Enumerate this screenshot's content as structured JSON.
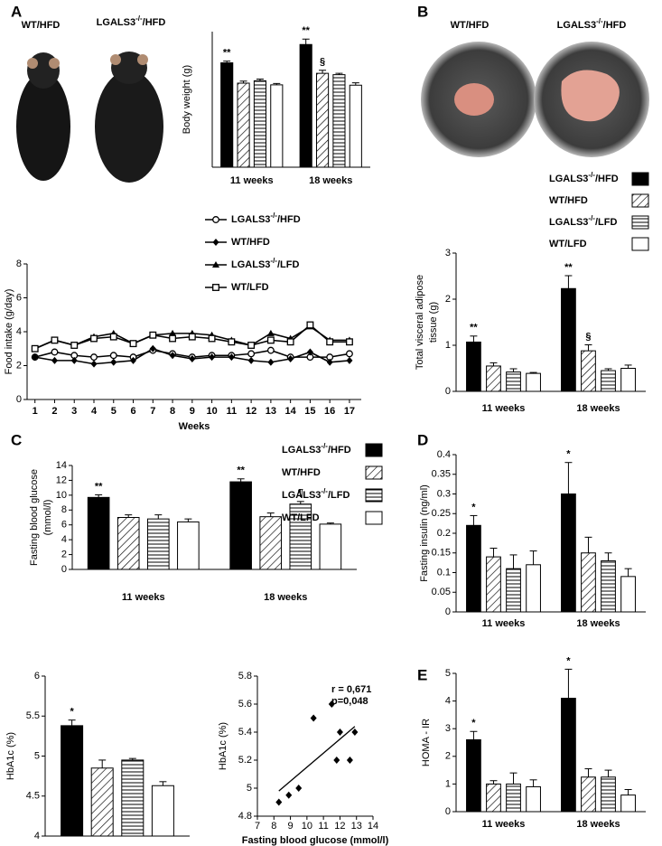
{
  "panel_letters": [
    "A",
    "B",
    "C",
    "D",
    "E"
  ],
  "photo_labels": [
    [
      "WT/HFD",
      "LGALS3-/-/HFD"
    ],
    [
      "WT/HFD",
      "LGALS3-/-/HFD"
    ]
  ],
  "chart_data": [
    {
      "type": "bar",
      "ylabel": [
        "Body weight (g)"
      ],
      "categories": [
        "11 weeks",
        "18 weeks"
      ],
      "ylim": [
        0,
        40
      ],
      "series": [
        {
          "color": "#000000",
          "pattern": "solid",
          "values": [
            30.8,
            36.2
          ],
          "errors": [
            0.5,
            1.6
          ],
          "significance": [
            "**",
            "**"
          ]
        },
        {
          "color": "#ffffff",
          "pattern": "diagonal",
          "values": [
            24.8,
            27.7
          ],
          "errors": [
            0.6,
            0.9
          ],
          "significance": [
            null,
            "§"
          ]
        },
        {
          "color": "#ffffff",
          "pattern": "horizontal",
          "values": [
            25.5,
            27.3
          ],
          "errors": [
            0.5,
            0.4
          ]
        },
        {
          "color": "#ffffff",
          "pattern": "solid",
          "values": [
            24.3,
            24.2
          ],
          "errors": [
            0.4,
            0.7
          ]
        }
      ]
    },
    {
      "type": "line",
      "ylabel": [
        "Food intake (g/day)"
      ],
      "xlabel": "Weeks",
      "x": [
        1,
        2,
        3,
        4,
        5,
        6,
        7,
        8,
        9,
        10,
        11,
        12,
        13,
        14,
        15,
        16,
        17
      ],
      "xlim": [
        0.6,
        17.6
      ],
      "xticks": [
        1,
        2,
        3,
        4,
        5,
        6,
        7,
        8,
        9,
        10,
        11,
        12,
        13,
        14,
        15,
        16,
        17
      ],
      "ylim": [
        0,
        8
      ],
      "yticks": [
        0,
        2,
        4,
        6,
        8
      ],
      "series": [
        {
          "name": "LGALS3-/-/HFD",
          "color": "#000000",
          "marker": "circle-open",
          "values": [
            2.5,
            2.8,
            2.6,
            2.5,
            2.6,
            2.5,
            2.9,
            2.7,
            2.5,
            2.6,
            2.6,
            2.7,
            2.9,
            2.5,
            2.5,
            2.5,
            2.7
          ]
        },
        {
          "name": "WT/HFD",
          "color": "#000000",
          "marker": "diamond",
          "values": [
            2.5,
            2.3,
            2.3,
            2.1,
            2.2,
            2.3,
            3.0,
            2.6,
            2.4,
            2.5,
            2.5,
            2.3,
            2.2,
            2.4,
            2.8,
            2.2,
            2.3
          ]
        },
        {
          "name": "LGALS3-/-/LFD",
          "color": "#000000",
          "marker": "triangle",
          "values": [
            3.0,
            3.5,
            3.2,
            3.7,
            3.9,
            3.3,
            3.8,
            3.9,
            3.9,
            3.8,
            3.5,
            3.2,
            3.9,
            3.6,
            4.3,
            3.5,
            3.5
          ]
        },
        {
          "name": "WT/LFD",
          "color": "#000000",
          "marker": "square-open",
          "values": [
            3.0,
            3.5,
            3.2,
            3.6,
            3.7,
            3.3,
            3.8,
            3.6,
            3.7,
            3.6,
            3.4,
            3.2,
            3.5,
            3.4,
            4.4,
            3.4,
            3.4
          ]
        }
      ]
    },
    {
      "type": "bar",
      "ylabel": [
        "Total visceral adipose",
        "tissue (g)"
      ],
      "categories": [
        "11 weeks",
        "18 weeks"
      ],
      "ylim": [
        0,
        3
      ],
      "yticks": [
        0,
        1,
        2,
        3
      ],
      "series": [
        {
          "name": "LGALS3-/-/HFD",
          "color": "#000000",
          "pattern": "solid",
          "values": [
            1.07,
            2.23
          ],
          "errors": [
            0.13,
            0.28
          ],
          "significance": [
            "**",
            "**"
          ]
        },
        {
          "name": "WT/HFD",
          "color": "#ffffff",
          "pattern": "diagonal",
          "values": [
            0.55,
            0.88
          ],
          "errors": [
            0.07,
            0.13
          ],
          "significance": [
            null,
            "§"
          ]
        },
        {
          "name": "LGALS3-/-/LFD",
          "color": "#ffffff",
          "pattern": "horizontal",
          "values": [
            0.42,
            0.45
          ],
          "errors": [
            0.07,
            0.04
          ]
        },
        {
          "name": "WT/LFD",
          "color": "#ffffff",
          "pattern": "solid",
          "values": [
            0.39,
            0.5
          ],
          "errors": [
            0.02,
            0.07
          ]
        }
      ]
    },
    {
      "type": "bar",
      "ylabel": [
        "Fasting blood glucose",
        "(mmol/l)"
      ],
      "categories": [
        "11 weeks",
        "18 weeks"
      ],
      "ylim": [
        0,
        14
      ],
      "yticks": [
        0,
        2,
        4,
        6,
        8,
        10,
        12,
        14
      ],
      "series": [
        {
          "name": "LGALS3-/-/HFD",
          "color": "#000000",
          "pattern": "solid",
          "values": [
            9.7,
            11.8
          ],
          "errors": [
            0.35,
            0.4
          ],
          "significance": [
            "**",
            "**"
          ]
        },
        {
          "name": "WT/HFD",
          "color": "#ffffff",
          "pattern": "diagonal",
          "values": [
            7.0,
            7.1
          ],
          "errors": [
            0.35,
            0.5
          ]
        },
        {
          "name": "LGALS3-/-/LFD",
          "color": "#ffffff",
          "pattern": "horizontal",
          "values": [
            6.8,
            8.8
          ],
          "errors": [
            0.55,
            0.35
          ],
          "significance": [
            null,
            "¶"
          ]
        },
        {
          "name": "WT/LFD",
          "color": "#ffffff",
          "pattern": "solid",
          "values": [
            6.4,
            6.1
          ],
          "errors": [
            0.4,
            0.15
          ]
        }
      ]
    },
    {
      "type": "bar",
      "ylabel": [
        "Fasting insulin (ng/ml)"
      ],
      "categories": [
        "11 weeks",
        "18 weeks"
      ],
      "ylim": [
        0,
        0.4
      ],
      "yticks": [
        0,
        0.05,
        0.1,
        0.15,
        0.2,
        0.25,
        0.3,
        0.35,
        0.4
      ],
      "series": [
        {
          "color": "#000000",
          "pattern": "solid",
          "values": [
            0.22,
            0.3
          ],
          "errors": [
            0.025,
            0.08
          ],
          "significance": [
            "*",
            "*"
          ]
        },
        {
          "color": "#ffffff",
          "pattern": "diagonal",
          "values": [
            0.14,
            0.15
          ],
          "errors": [
            0.022,
            0.04
          ]
        },
        {
          "color": "#ffffff",
          "pattern": "horizontal",
          "values": [
            0.11,
            0.13
          ],
          "errors": [
            0.035,
            0.02
          ]
        },
        {
          "color": "#ffffff",
          "pattern": "solid",
          "values": [
            0.12,
            0.09
          ],
          "errors": [
            0.035,
            0.02
          ]
        }
      ]
    },
    {
      "type": "bar",
      "ylabel": [
        "HOMA - IR"
      ],
      "categories": [
        "11 weeks",
        "18 weeks"
      ],
      "ylim": [
        0,
        5
      ],
      "yticks": [
        0,
        1,
        2,
        3,
        4,
        5
      ],
      "series": [
        {
          "color": "#000000",
          "pattern": "solid",
          "values": [
            2.6,
            4.1
          ],
          "errors": [
            0.3,
            1.05
          ],
          "significance": [
            "*",
            "*"
          ]
        },
        {
          "color": "#ffffff",
          "pattern": "diagonal",
          "values": [
            1.0,
            1.25
          ],
          "errors": [
            0.12,
            0.3
          ]
        },
        {
          "color": "#ffffff",
          "pattern": "horizontal",
          "values": [
            1.0,
            1.25
          ],
          "errors": [
            0.4,
            0.25
          ]
        },
        {
          "color": "#ffffff",
          "pattern": "solid",
          "values": [
            0.9,
            0.6
          ],
          "errors": [
            0.25,
            0.2
          ]
        }
      ]
    },
    {
      "type": "bar",
      "ylabel": [
        "HbA1c (%)"
      ],
      "categories": [
        null
      ],
      "ylim": [
        4,
        6
      ],
      "yticks": [
        4,
        4.5,
        5,
        5.5,
        6
      ],
      "series": [
        {
          "color": "#000000",
          "pattern": "solid",
          "values": [
            5.38
          ],
          "errors": [
            0.07
          ],
          "significance": [
            "*"
          ]
        },
        {
          "color": "#ffffff",
          "pattern": "diagonal",
          "values": [
            4.85
          ],
          "errors": [
            0.1
          ]
        },
        {
          "color": "#ffffff",
          "pattern": "horizontal",
          "values": [
            4.95
          ],
          "errors": [
            0.02
          ]
        },
        {
          "color": "#ffffff",
          "pattern": "solid",
          "values": [
            4.63
          ],
          "errors": [
            0.05
          ]
        }
      ]
    },
    {
      "type": "scatter",
      "ylabel": [
        "HbA1c (%)"
      ],
      "xlabel": "Fasting blood glucose (mmol/l)",
      "xlim": [
        7,
        14
      ],
      "xticks": [
        7,
        8,
        9,
        10,
        11,
        12,
        13,
        14
      ],
      "ylim": [
        4.8,
        5.8
      ],
      "yticks": [
        4.8,
        5,
        5.2,
        5.4,
        5.6,
        5.8
      ],
      "color": "#000000",
      "x": [
        8.3,
        8.9,
        9.5,
        10.4,
        11.5,
        11.8,
        12.0,
        12.6,
        12.9
      ],
      "values": [
        4.9,
        4.95,
        5.0,
        5.5,
        5.6,
        5.2,
        5.4,
        5.2,
        5.4
      ],
      "trendline": {
        "x": [
          8.3,
          12.9
        ],
        "values": [
          4.98,
          5.44
        ]
      },
      "stats": [
        "r = 0,671",
        "p=0,048"
      ]
    }
  ]
}
